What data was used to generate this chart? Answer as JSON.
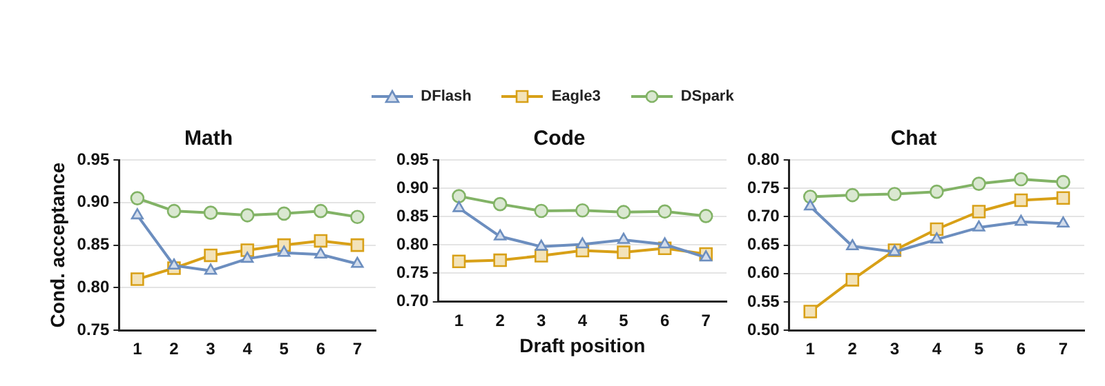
{
  "chart_data": [
    {
      "type": "line",
      "title": "Math",
      "ylabel": "Cond. acceptance",
      "categories": [
        "1",
        "2",
        "3",
        "4",
        "5",
        "6",
        "7"
      ],
      "ylim": [
        0.75,
        0.95
      ],
      "yticks": [
        0.75,
        {
          "value": 0.8,
          "label": "0.80"
        },
        0.85,
        {
          "value": 0.9,
          "label": "0.90"
        },
        0.95
      ],
      "grid": "y",
      "legend": "top",
      "series": [
        {
          "name": "DFlash",
          "color": "#6c8ebf",
          "marker": "triangle",
          "values": [
            0.885,
            0.826,
            0.82,
            0.834,
            0.841,
            0.839,
            0.828
          ]
        },
        {
          "name": "Eagle3",
          "color": "#d8a017",
          "marker": "square",
          "values": [
            0.81,
            0.823,
            0.838,
            0.844,
            0.85,
            0.855,
            0.85
          ]
        },
        {
          "name": "DSpark",
          "color": "#82b366",
          "marker": "circle",
          "values": [
            0.905,
            0.89,
            0.888,
            0.885,
            0.887,
            0.89,
            0.883
          ]
        }
      ]
    },
    {
      "type": "line",
      "title": "Code",
      "xlabel": "Draft position",
      "categories": [
        "1",
        "2",
        "3",
        "4",
        "5",
        "6",
        "7"
      ],
      "ylim": [
        0.7,
        0.95
      ],
      "yticks": [
        {
          "value": 0.7,
          "label": "0.70"
        },
        0.75,
        {
          "value": 0.8,
          "label": "0.80"
        },
        0.85,
        {
          "value": 0.9,
          "label": "0.90"
        },
        0.95
      ],
      "grid": "y",
      "series": [
        {
          "color": "#6c8ebf",
          "marker": "triangle",
          "values": [
            0.865,
            0.815,
            0.797,
            0.801,
            0.809,
            0.801,
            0.778
          ]
        },
        {
          "color": "#d8a017",
          "marker": "square",
          "values": [
            0.771,
            0.773,
            0.781,
            0.79,
            0.787,
            0.794,
            0.784
          ]
        },
        {
          "color": "#82b366",
          "marker": "circle",
          "values": [
            0.886,
            0.872,
            0.86,
            0.861,
            0.858,
            0.859,
            0.851
          ]
        }
      ]
    },
    {
      "type": "line",
      "title": "Chat",
      "categories": [
        "1",
        "2",
        "3",
        "4",
        "5",
        "6",
        "7"
      ],
      "ylim": [
        0.5,
        0.8
      ],
      "yticks": [
        {
          "value": 0.5,
          "label": "0.50"
        },
        0.55,
        {
          "value": 0.6,
          "label": "0.60"
        },
        0.65,
        {
          "value": 0.7,
          "label": "0.70"
        },
        0.75,
        {
          "value": 0.8,
          "label": "0.80"
        }
      ],
      "grid": "y",
      "series": [
        {
          "color": "#6c8ebf",
          "marker": "triangle",
          "values": [
            0.718,
            0.648,
            0.638,
            0.66,
            0.681,
            0.691,
            0.688
          ]
        },
        {
          "color": "#d8a017",
          "marker": "square",
          "values": [
            0.533,
            0.589,
            0.641,
            0.678,
            0.709,
            0.729,
            0.733
          ]
        },
        {
          "color": "#82b366",
          "marker": "circle",
          "values": [
            0.735,
            0.738,
            0.74,
            0.744,
            0.758,
            0.766,
            0.761
          ]
        }
      ]
    }
  ]
}
